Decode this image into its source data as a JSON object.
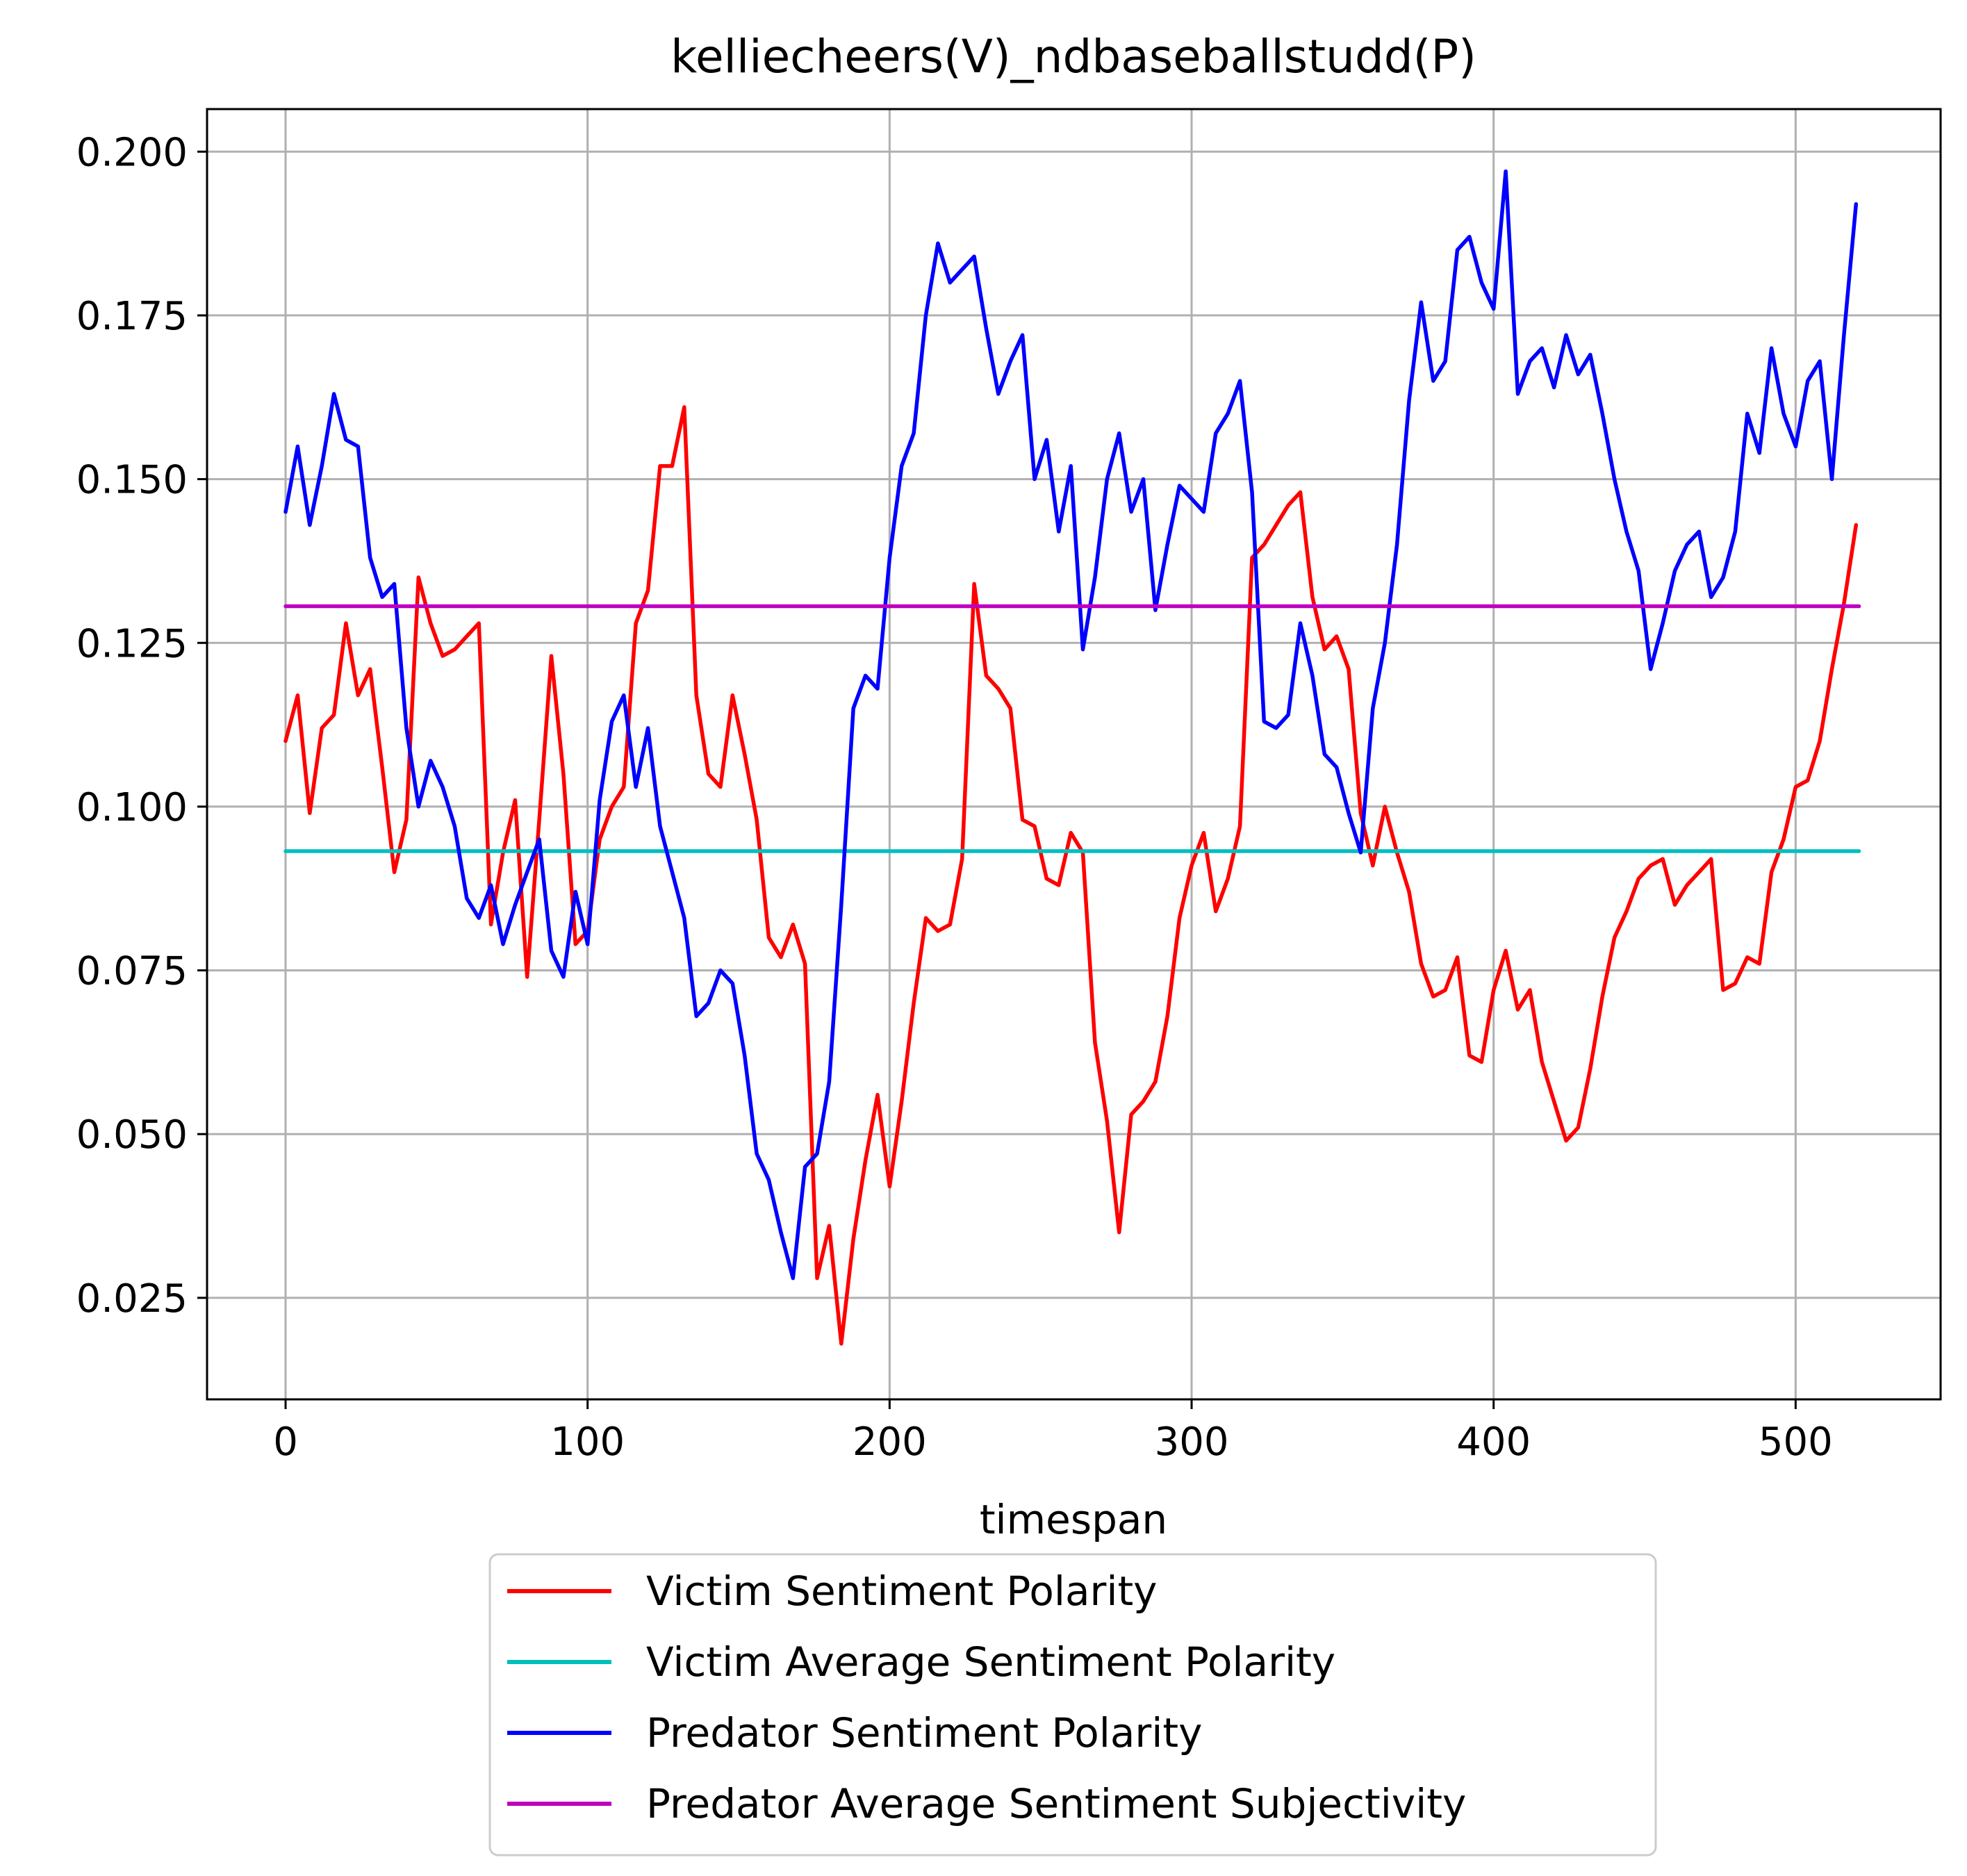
{
  "chart_data": {
    "type": "line",
    "title": "kelliecheers(V)_ndbaseballstudd(P)",
    "xlabel": "timespan",
    "ylabel": "",
    "xlim": [
      -26,
      548
    ],
    "ylim": [
      0.0095,
      0.2065
    ],
    "xticks": [
      0,
      100,
      200,
      300,
      400,
      500
    ],
    "xtick_labels": [
      "0",
      "100",
      "200",
      "300",
      "400",
      "500"
    ],
    "yticks": [
      0.025,
      0.05,
      0.075,
      0.1,
      0.125,
      0.15,
      0.175,
      0.2
    ],
    "ytick_labels": [
      "0.025",
      "0.050",
      "0.075",
      "0.100",
      "0.125",
      "0.150",
      "0.175",
      "0.200"
    ],
    "grid": true,
    "legend_position": "below plot",
    "series": [
      {
        "name": "Victim Sentiment Polarity",
        "color": "#ff0000",
        "x": [
          0,
          4,
          8,
          12,
          16,
          20,
          24,
          28,
          32,
          36,
          40,
          44,
          48,
          52,
          56,
          60,
          64,
          68,
          72,
          76,
          80,
          84,
          88,
          92,
          96,
          100,
          104,
          108,
          112,
          116,
          120,
          124,
          128,
          132,
          136,
          140,
          144,
          148,
          152,
          156,
          160,
          164,
          168,
          172,
          176,
          180,
          184,
          188,
          192,
          196,
          200,
          204,
          208,
          212,
          216,
          220,
          224,
          228,
          232,
          236,
          240,
          244,
          248,
          252,
          256,
          260,
          264,
          268,
          272,
          276,
          280,
          284,
          288,
          292,
          296,
          300,
          304,
          308,
          312,
          316,
          320,
          324,
          328,
          332,
          336,
          340,
          344,
          348,
          352,
          356,
          360,
          364,
          368,
          372,
          376,
          380,
          384,
          388,
          392,
          396,
          400,
          404,
          408,
          412,
          416,
          420,
          424,
          428,
          432,
          436,
          440,
          444,
          448,
          452,
          456,
          460,
          464,
          468,
          472,
          476,
          480,
          484,
          488,
          492,
          496,
          500,
          504,
          508,
          512,
          516,
          520
        ],
        "values": [
          0.11,
          0.117,
          0.099,
          0.112,
          0.114,
          0.128,
          0.117,
          0.121,
          0.106,
          0.09,
          0.098,
          0.135,
          0.128,
          0.123,
          0.124,
          0.126,
          0.128,
          0.082,
          0.093,
          0.101,
          0.074,
          0.098,
          0.123,
          0.105,
          0.079,
          0.081,
          0.095,
          0.1,
          0.103,
          0.128,
          0.133,
          0.152,
          0.152,
          0.161,
          0.117,
          0.105,
          0.103,
          0.117,
          0.108,
          0.098,
          0.08,
          0.077,
          0.082,
          0.076,
          0.028,
          0.036,
          0.018,
          0.034,
          0.046,
          0.056,
          0.042,
          0.055,
          0.07,
          0.083,
          0.081,
          0.082,
          0.092,
          0.134,
          0.12,
          0.118,
          0.115,
          0.098,
          0.097,
          0.089,
          0.088,
          0.096,
          0.093,
          0.064,
          0.052,
          0.035,
          0.053,
          0.055,
          0.058,
          0.068,
          0.083,
          0.091,
          0.096,
          0.084,
          0.089,
          0.097,
          0.138,
          0.14,
          0.143,
          0.146,
          0.148,
          0.132,
          0.124,
          0.126,
          0.121,
          0.099,
          0.091,
          0.1,
          0.093,
          0.087,
          0.076,
          0.071,
          0.072,
          0.077,
          0.062,
          0.061,
          0.072,
          0.078,
          0.069,
          0.072,
          0.061,
          0.055,
          0.049,
          0.051,
          0.06,
          0.071,
          0.08,
          0.084,
          0.089,
          0.091,
          0.092,
          0.085,
          0.088,
          0.09,
          0.092,
          0.072,
          0.073,
          0.077,
          0.076,
          0.09,
          0.095,
          0.103,
          0.104,
          0.11,
          0.121,
          0.131,
          0.143
        ]
      },
      {
        "name": "Victim Average Sentiment Polarity",
        "color": "#00bfbf",
        "x": [
          0,
          521
        ],
        "values": [
          0.0932,
          0.0932
        ]
      },
      {
        "name": "Predator Sentiment Polarity",
        "color": "#0000ff",
        "x": [
          0,
          4,
          8,
          12,
          16,
          20,
          24,
          28,
          32,
          36,
          40,
          44,
          48,
          52,
          56,
          60,
          64,
          68,
          72,
          76,
          80,
          84,
          88,
          92,
          96,
          100,
          104,
          108,
          112,
          116,
          120,
          124,
          128,
          132,
          136,
          140,
          144,
          148,
          152,
          156,
          160,
          164,
          168,
          172,
          176,
          180,
          184,
          188,
          192,
          196,
          200,
          204,
          208,
          212,
          216,
          220,
          224,
          228,
          232,
          236,
          240,
          244,
          248,
          252,
          256,
          260,
          264,
          268,
          272,
          276,
          280,
          284,
          288,
          292,
          296,
          300,
          304,
          308,
          312,
          316,
          320,
          324,
          328,
          332,
          336,
          340,
          344,
          348,
          352,
          356,
          360,
          364,
          368,
          372,
          376,
          380,
          384,
          388,
          392,
          396,
          400,
          404,
          408,
          412,
          416,
          420,
          424,
          428,
          432,
          436,
          440,
          444,
          448,
          452,
          456,
          460,
          464,
          468,
          472,
          476,
          480,
          484,
          488,
          492,
          496,
          500,
          504,
          508,
          512,
          516,
          520
        ],
        "values": [
          0.145,
          0.155,
          0.143,
          0.152,
          0.163,
          0.156,
          0.155,
          0.138,
          0.132,
          0.134,
          0.112,
          0.1,
          0.107,
          0.103,
          0.097,
          0.086,
          0.083,
          0.088,
          0.079,
          0.085,
          0.09,
          0.095,
          0.078,
          0.074,
          0.087,
          0.079,
          0.101,
          0.113,
          0.117,
          0.103,
          0.112,
          0.097,
          0.09,
          0.083,
          0.068,
          0.07,
          0.075,
          0.073,
          0.062,
          0.047,
          0.043,
          0.035,
          0.028,
          0.045,
          0.047,
          0.058,
          0.085,
          0.115,
          0.12,
          0.118,
          0.138,
          0.152,
          0.157,
          0.175,
          0.186,
          0.18,
          0.182,
          0.184,
          0.173,
          0.163,
          0.168,
          0.172,
          0.15,
          0.156,
          0.142,
          0.152,
          0.124,
          0.135,
          0.15,
          0.157,
          0.145,
          0.15,
          0.13,
          0.14,
          0.149,
          0.147,
          0.145,
          0.157,
          0.16,
          0.165,
          0.148,
          0.113,
          0.112,
          0.114,
          0.128,
          0.12,
          0.108,
          0.106,
          0.099,
          0.093,
          0.115,
          0.125,
          0.14,
          0.162,
          0.177,
          0.165,
          0.168,
          0.185,
          0.187,
          0.18,
          0.176,
          0.197,
          0.163,
          0.168,
          0.17,
          0.164,
          0.172,
          0.166,
          0.169,
          0.16,
          0.15,
          0.142,
          0.136,
          0.121,
          0.128,
          0.136,
          0.14,
          0.142,
          0.132,
          0.135,
          0.142,
          0.16,
          0.154,
          0.17,
          0.16,
          0.155,
          0.165,
          0.168,
          0.15,
          0.172,
          0.192
        ]
      },
      {
        "name": "Predator Average Sentiment Subjectivity",
        "color": "#bf00bf",
        "x": [
          0,
          521
        ],
        "values": [
          0.1306,
          0.1306
        ]
      }
    ]
  }
}
